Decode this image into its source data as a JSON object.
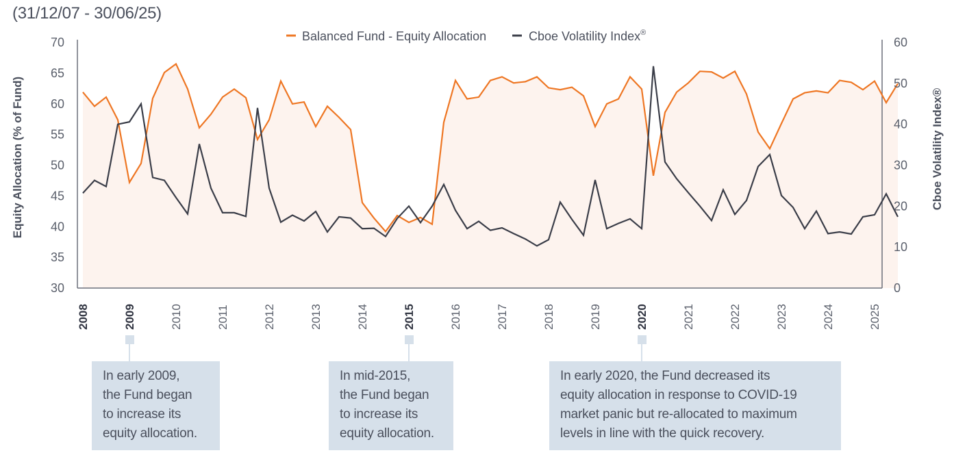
{
  "subtitle": "(31/12/07 - 30/06/25)",
  "legend": [
    {
      "label": "Balanced Fund - Equity Allocation",
      "color": "#ee7623"
    },
    {
      "label": "Cboe Volatility Index",
      "superscript": "®",
      "color": "#3a3d48"
    }
  ],
  "annotations": [
    {
      "year": "2009",
      "lines": [
        "In early 2009,",
        "the Fund began",
        "to increase its",
        "equity allocation."
      ]
    },
    {
      "year": "2015",
      "lines": [
        "In mid-2015,",
        "the Fund began",
        "to increase its",
        "equity allocation."
      ]
    },
    {
      "year": "2020",
      "lines": [
        "In early 2020, the Fund decreased its",
        "equity allocation in response to COVID-19",
        "market panic but re-allocated to maximum",
        "levels in line with the quick recovery."
      ]
    }
  ],
  "colors": {
    "equity": "#ee7623",
    "vix": "#3a3d48",
    "area_fill": "#fdf3ee",
    "axis": "#6b6f7a",
    "note_bg": "#d6e0ea"
  },
  "chart_data": {
    "type": "line",
    "title": "",
    "subtitle": "(31/12/07 - 30/06/25)",
    "xlabel": "",
    "ylabel": "Equity Allocation (% of Fund)",
    "y2label": "Cboe Volatility Index®",
    "ylim": [
      30,
      70
    ],
    "y2lim": [
      0,
      60
    ],
    "yticks": [
      "30",
      "35",
      "40",
      "45",
      "50",
      "55",
      "60",
      "65",
      "70"
    ],
    "y2ticks": [
      "0",
      "10",
      "20",
      "30",
      "40",
      "50",
      "60"
    ],
    "xticks": [
      "2008",
      "2009",
      "2010",
      "2011",
      "2012",
      "2013",
      "2014",
      "2015",
      "2016",
      "2017",
      "2018",
      "2019",
      "2020",
      "2021",
      "2022",
      "2023",
      "2024",
      "2025"
    ],
    "xticks_bold": [
      "2008",
      "2009",
      "2015",
      "2020"
    ],
    "x_start": 2008.0,
    "x_end": 2025.0,
    "x_step": 0.25,
    "grid": false,
    "legend_position": "top-center",
    "series": [
      {
        "name": "Balanced Fund - Equity Allocation",
        "axis": "left",
        "filled": true,
        "values": [
          61.9,
          59.6,
          61.1,
          57.4,
          47.2,
          50.3,
          60.9,
          65.1,
          66.5,
          62.4,
          56.1,
          58.3,
          61.1,
          62.4,
          61.0,
          54.2,
          57.4,
          63.7,
          60.0,
          60.3,
          56.3,
          59.6,
          57.8,
          55.8,
          43.9,
          41.4,
          39.2,
          41.8,
          40.7,
          41.5,
          40.4,
          57.0,
          63.8,
          60.8,
          61.1,
          63.8,
          64.4,
          63.4,
          63.6,
          64.4,
          62.6,
          62.3,
          62.7,
          61.3,
          56.3,
          60.0,
          60.8,
          64.4,
          62.4,
          48.3,
          58.6,
          61.9,
          63.4,
          65.3,
          65.2,
          64.2,
          65.3,
          61.6,
          55.4,
          52.7,
          56.8,
          60.8,
          61.8,
          62.1,
          61.8,
          63.8,
          63.5,
          62.3,
          63.7,
          60.2,
          63.3
        ]
      },
      {
        "name": "Cboe Volatility Index®",
        "axis": "right",
        "filled": false,
        "values": [
          23.2,
          26.3,
          24.8,
          40.0,
          40.6,
          45.0,
          27.0,
          26.3,
          22.1,
          18.1,
          35.2,
          24.4,
          18.4,
          18.4,
          17.5,
          44.0,
          24.4,
          16.1,
          17.8,
          16.4,
          18.7,
          13.7,
          17.4,
          17.1,
          14.5,
          14.6,
          12.6,
          17.0,
          20.0,
          16.0,
          20.0,
          25.3,
          19.0,
          14.5,
          16.3,
          14.1,
          14.7,
          13.3,
          12.0,
          10.3,
          11.8,
          21.0,
          16.8,
          12.9,
          26.4,
          14.5,
          15.8,
          16.9,
          14.5,
          54.2,
          30.8,
          26.7,
          23.3,
          20.0,
          16.5,
          24.0,
          18.0,
          21.4,
          29.7,
          32.6,
          22.6,
          19.7,
          14.5,
          18.8,
          13.3,
          13.7,
          13.2,
          17.4,
          17.9,
          23.0,
          17.4
        ]
      }
    ]
  }
}
